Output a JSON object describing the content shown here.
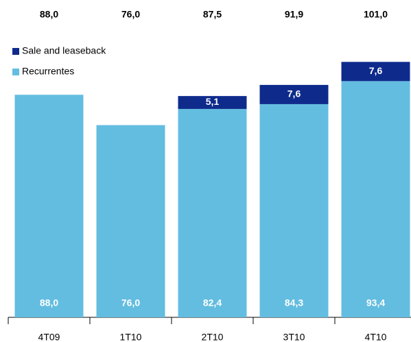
{
  "chart_data": {
    "type": "stacked-bar",
    "categories": [
      "4T09",
      "1T10",
      "2T10",
      "3T10",
      "4T10"
    ],
    "series": [
      {
        "name": "Recurrentes",
        "color": "#63bde0",
        "values": [
          88.0,
          76.0,
          82.4,
          84.3,
          93.4
        ],
        "value_labels": [
          "88,0",
          "76,0",
          "82,4",
          "84,3",
          "93,4"
        ]
      },
      {
        "name": "Sale and leaseback",
        "color": "#0e2b8c",
        "values": [
          null,
          null,
          5.1,
          7.6,
          7.6
        ],
        "value_labels": [
          null,
          null,
          "5,1",
          "7,6",
          "7,6"
        ]
      }
    ],
    "totals": [
      88.0,
      76.0,
      87.5,
      91.9,
      101.0
    ],
    "total_labels": [
      "88,0",
      "76,0",
      "87,5",
      "91,9",
      "101,0"
    ]
  }
}
